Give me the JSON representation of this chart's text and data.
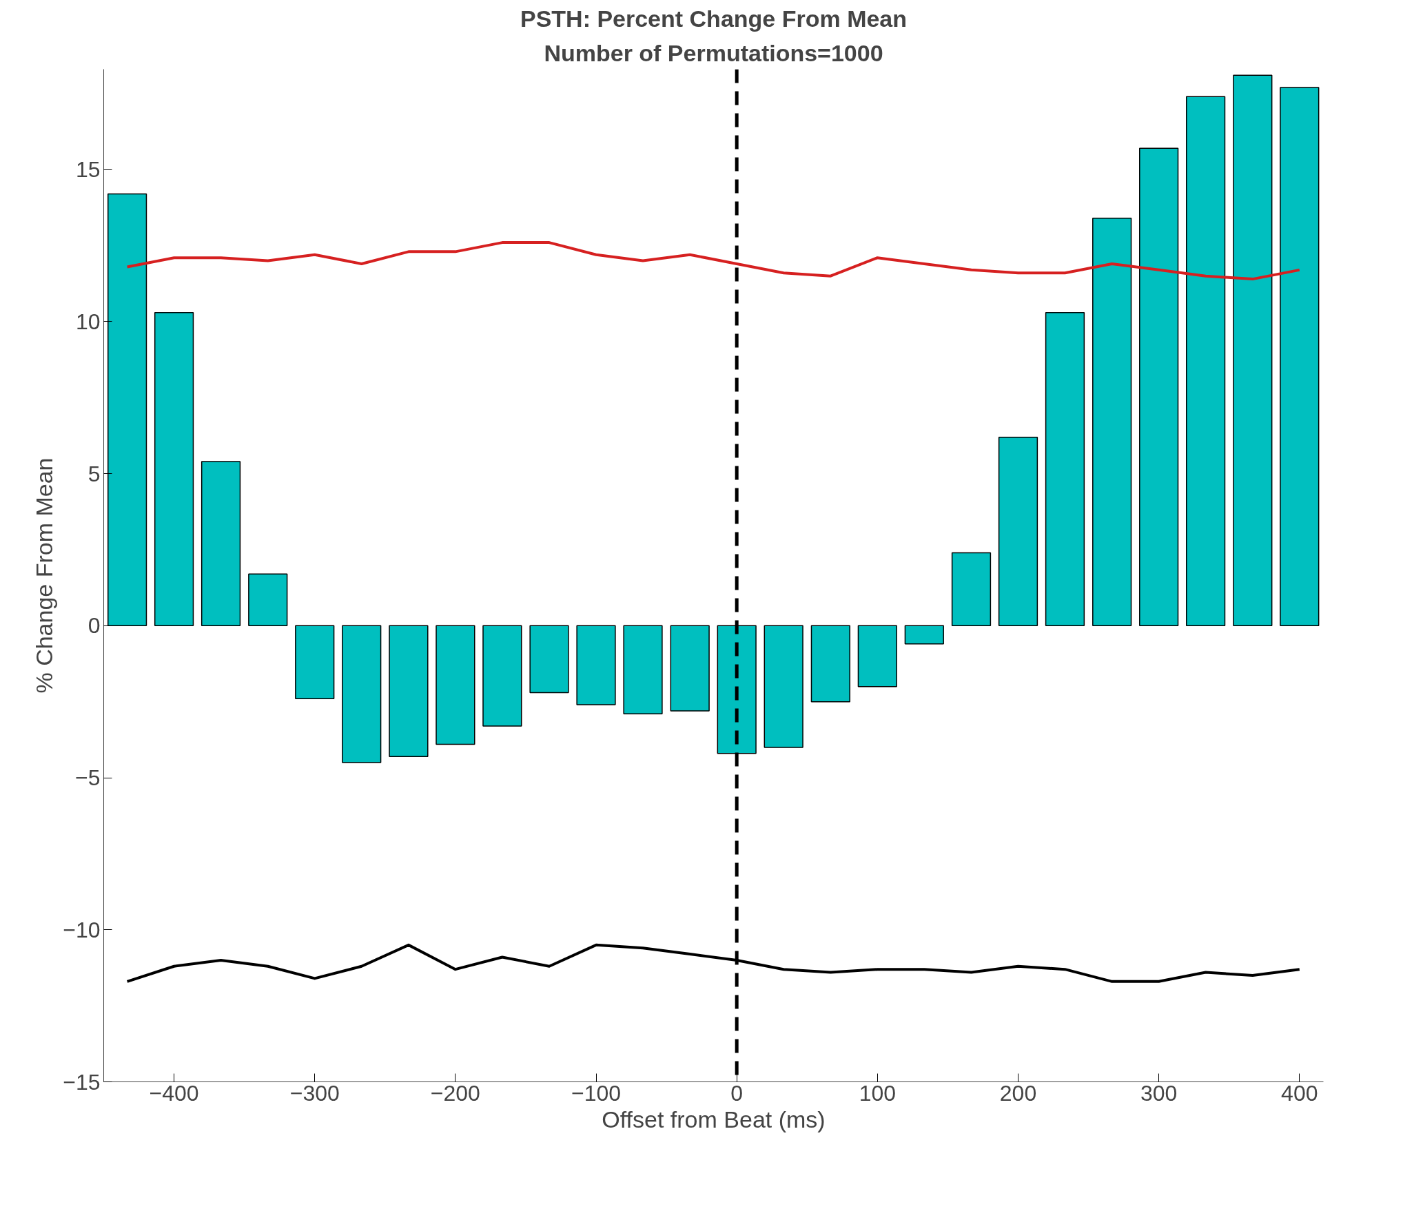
{
  "chart_data": {
    "type": "bar",
    "title": "PSTH: Percent Change From Mean",
    "subtitle": "Number of Permutations=1000",
    "xlabel": "Offset from Beat (ms)",
    "ylabel": "% Change From Mean",
    "x": [
      -433.3,
      -400,
      -366.7,
      -333.3,
      -300,
      -266.7,
      -233.3,
      -200,
      -166.7,
      -133.3,
      -100,
      -66.7,
      -33.3,
      0,
      33.3,
      66.7,
      100,
      133.3,
      166.7,
      200,
      233.3,
      266.7,
      300,
      333.3,
      366.7,
      400
    ],
    "series": [
      {
        "color": "#00bfbf",
        "values": [
          14.2,
          10.3,
          5.4,
          1.7,
          -2.4,
          -4.5,
          -4.3,
          -3.9,
          -3.3,
          -2.2,
          -2.6,
          -2.9,
          -2.8,
          -4.2,
          -4.0,
          -2.5,
          -2.0,
          -0.6,
          2.4,
          6.2,
          10.3,
          13.4,
          15.7,
          17.4,
          18.1,
          17.7
        ]
      },
      {
        "type": "line",
        "color": "#d62020",
        "values": [
          11.8,
          12.1,
          12.1,
          12.0,
          12.2,
          11.9,
          12.3,
          12.3,
          12.6,
          12.6,
          12.2,
          12.0,
          12.2,
          11.9,
          11.6,
          11.5,
          12.1,
          11.9,
          11.7,
          11.6,
          11.6,
          11.9,
          11.7,
          11.5,
          11.4,
          11.7
        ]
      },
      {
        "type": "line",
        "color": "#000000",
        "values": [
          -11.7,
          -11.2,
          -11.0,
          -11.2,
          -11.6,
          -11.2,
          -10.5,
          -11.3,
          -10.9,
          -11.2,
          -10.5,
          -10.6,
          -10.8,
          -11.0,
          -11.3,
          -11.4,
          -11.3,
          -11.3,
          -11.4,
          -11.2,
          -11.3,
          -11.7,
          -11.7,
          -11.4,
          -11.5,
          -11.3
        ]
      }
    ],
    "xlim": [
      -450,
      417
    ],
    "ylim": [
      -15,
      18.3
    ],
    "xticks": [
      -400,
      -300,
      -200,
      -100,
      0,
      100,
      200,
      300,
      400
    ],
    "yticks": [
      -15,
      -10,
      -5,
      0,
      5,
      10,
      15
    ],
    "ref_lines": [
      {
        "axis": "x",
        "value": 0,
        "color": "#000000",
        "line_style": "dashed"
      }
    ],
    "grid": false
  }
}
